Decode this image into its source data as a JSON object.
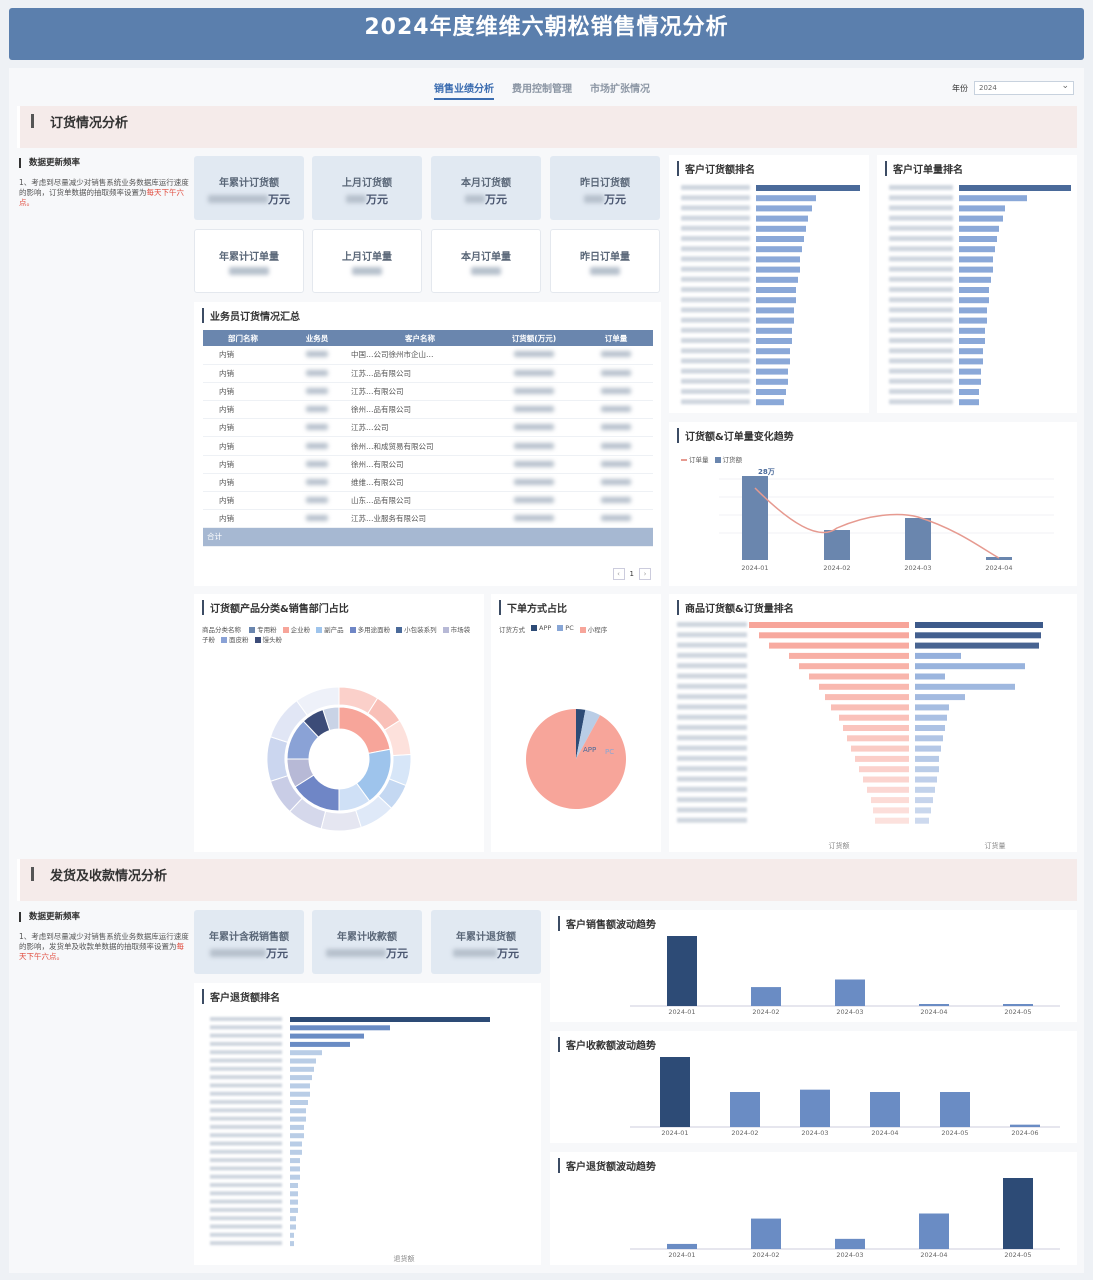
{
  "title": "2024年度维维六朝松销售情况分析",
  "tabs": [
    "销售业绩分析",
    "费用控制管理",
    "市场扩张情况"
  ],
  "year_filter": {
    "label": "年份",
    "value": "2024"
  },
  "colors": {
    "banner": "#5b7fad",
    "dark_bar": "#2d4b76",
    "bar": "#6a8cc4",
    "pie": "#f7a59a"
  },
  "section1": {
    "title": "订货情况分析",
    "note_heading": "数据更新频率",
    "note_text": "1、考虑到尽量减少对销售系统业务数据库运行速度的影响，订货单数据的抽取频率设置为",
    "note_highlight": "每天下午六点。",
    "kpis": [
      {
        "label": "年累计订货额",
        "unit": "万元"
      },
      {
        "label": "上月订货额",
        "unit": "万元"
      },
      {
        "label": "本月订货额",
        "unit": "万元"
      },
      {
        "label": "昨日订货额",
        "unit": "万元"
      },
      {
        "label": "年累计订单量",
        "unit": ""
      },
      {
        "label": "上月订单量",
        "unit": ""
      },
      {
        "label": "本月订单量",
        "unit": ""
      },
      {
        "label": "昨日订单量",
        "unit": ""
      }
    ],
    "customer_order_amount_title": "客户订货额排名",
    "customer_order_count_title": "客户订单量排名",
    "salesman_table": {
      "title": "业务员订货情况汇总",
      "headers": [
        "部门名称",
        "业务员",
        "客户名称",
        "订货额(万元)",
        "订单量"
      ],
      "rows": [
        {
          "dept": "内销",
          "customer": "中国…公司徐州市企山…"
        },
        {
          "dept": "内销",
          "customer": "江苏…品有限公司"
        },
        {
          "dept": "内销",
          "customer": "江苏…有限公司"
        },
        {
          "dept": "内销",
          "customer": "徐州…品有限公司"
        },
        {
          "dept": "内销",
          "customer": "江苏…公司"
        },
        {
          "dept": "内销",
          "customer": "徐州…和成贸易有限公司"
        },
        {
          "dept": "内销",
          "customer": "徐州…有限公司"
        },
        {
          "dept": "内销",
          "customer": "维维…有限公司"
        },
        {
          "dept": "内销",
          "customer": "山东…品有限公司"
        },
        {
          "dept": "内销",
          "customer": "江苏…业服务有限公司"
        }
      ],
      "total_label": "合计",
      "page": "1"
    },
    "trend": {
      "title": "订货额&订单量变化趋势",
      "legend": [
        "订单量",
        "订货额"
      ],
      "top_label": "28万"
    },
    "category_title": "订货额产品分类&销售部门占比",
    "category_legend_label": "商品分类名称",
    "category_legend": [
      "专用粉",
      "企业粉",
      "副产品",
      "多用途面粉",
      "小包装系列",
      "市场袋子粉",
      "面皮粉",
      "馒头粉"
    ],
    "order_method_title": "下单方式占比",
    "order_method_legend_label": "订货方式",
    "order_method_legend": [
      "APP",
      "PC",
      "小程序"
    ],
    "product_rank_title": "商品订货额&订货量排名",
    "product_rank_axis": [
      "订货额",
      "订货量"
    ]
  },
  "chart_data": [
    {
      "type": "line",
      "title": "订货额&订单量变化趋势",
      "categories": [
        "2024-01",
        "2024-02",
        "2024-03",
        "2024-04"
      ],
      "series": [
        {
          "name": "订货额",
          "values": [
            28,
            10,
            14,
            1
          ]
        },
        {
          "name": "订单量",
          "values": [
            8,
            4,
            5,
            0.5
          ]
        }
      ]
    },
    {
      "type": "pie",
      "title": "下单方式占比",
      "categories": [
        "APP",
        "PC",
        "小程序"
      ],
      "values": [
        3,
        5,
        92
      ]
    },
    {
      "type": "bar",
      "title": "客户销售额波动趋势",
      "categories": [
        "2024-01",
        "2024-02",
        "2024-03",
        "2024-04",
        "2024-05"
      ],
      "values": [
        37,
        10,
        14,
        1,
        0.5
      ]
    },
    {
      "type": "bar",
      "title": "客户收款额波动趋势",
      "categories": [
        "2024-01",
        "2024-02",
        "2024-03",
        "2024-04",
        "2024-05",
        "2024-06"
      ],
      "values": [
        30,
        15,
        16,
        15,
        15,
        1
      ]
    },
    {
      "type": "bar",
      "title": "客户退货额波动趋势",
      "categories": [
        "2024-01",
        "2024-02",
        "2024-03",
        "2024-04",
        "2024-05"
      ],
      "values": [
        1,
        6,
        2,
        7,
        14
      ]
    }
  ],
  "section2": {
    "title": "发货及收款情况分析",
    "note_heading": "数据更新频率",
    "note_text": "1、考虑到尽量减少对销售系统业务数据库运行速度的影响，发货单及收款单数据的抽取频率设置为",
    "note_highlight": "每天下午六点。",
    "kpis": [
      {
        "label": "年累计含税销售额",
        "unit": "万元"
      },
      {
        "label": "年累计收款额",
        "unit": "万元"
      },
      {
        "label": "年累计退货额",
        "unit": "万元"
      }
    ],
    "return_rank_title": "客户退货额排名",
    "return_rank_xlabel": "退货额",
    "sales_trend_title": "客户销售额波动趋势",
    "collect_trend_title": "客户收款额波动趋势",
    "return_trend_title": "客户退货额波动趋势"
  }
}
